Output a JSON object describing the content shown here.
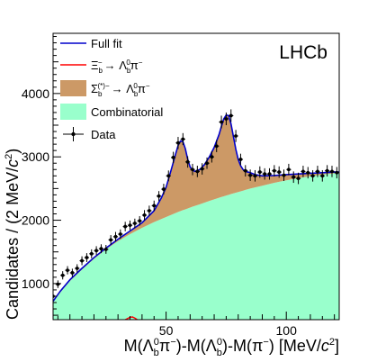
{
  "chart_data": {
    "type": "line",
    "experiment_label": "LHCb",
    "xlabel": {
      "pre": "M(Λ",
      "b": "b",
      "zero": "0",
      "mid": "π",
      "sup1": "−",
      "post1": ")-M(Λ",
      "post2": ")-M(π",
      "post3": ") [MeV/",
      "c": "c",
      "two": "2",
      "end": "]"
    },
    "ylabel": {
      "pre": "Candidates / (2 MeV/",
      "c": "c",
      "two": "2",
      "end": ")"
    },
    "xlim": [
      3,
      122
    ],
    "ylim": [
      430,
      4950
    ],
    "x_ticks": [
      50,
      100
    ],
    "y_ticks": [
      1000,
      2000,
      3000,
      4000
    ],
    "legend": {
      "placement": "top-left",
      "entries": [
        {
          "key": "full_fit",
          "label": "Full fit",
          "color": "#0000cc",
          "style": "line"
        },
        {
          "key": "xib",
          "label": "Ξb− → Λb0π−",
          "color": "#ff0000",
          "style": "line"
        },
        {
          "key": "sigmab",
          "label": "Σb(*)− → Λb0π−",
          "color": "#cc9966",
          "style": "fill"
        },
        {
          "key": "comb",
          "label": "Combinatorial",
          "color": "#99ffcc",
          "style": "fill"
        },
        {
          "key": "data",
          "label": "Data",
          "color": "#000000",
          "style": "marker"
        }
      ]
    },
    "series": [
      {
        "name": "Combinatorial",
        "color": "#99ffcc",
        "x": [
          3,
          6,
          10,
          15,
          20,
          25,
          30,
          35,
          40,
          45,
          50,
          55,
          60,
          65,
          70,
          75,
          80,
          85,
          90,
          95,
          100,
          105,
          110,
          115,
          120,
          122
        ],
        "y": [
          710,
          860,
          1040,
          1220,
          1390,
          1540,
          1670,
          1780,
          1880,
          1970,
          2050,
          2130,
          2200,
          2265,
          2330,
          2390,
          2445,
          2500,
          2545,
          2590,
          2630,
          2665,
          2695,
          2720,
          2740,
          2745
        ]
      },
      {
        "name": "Full fit",
        "color": "#0000cc",
        "x": [
          3,
          6,
          10,
          15,
          20,
          25,
          30,
          35,
          40,
          45,
          48,
          50,
          52,
          54,
          55,
          56,
          57,
          58,
          59,
          60,
          61,
          62,
          64,
          66,
          68,
          70,
          72,
          73,
          74,
          75,
          76,
          77,
          78,
          79,
          80,
          81,
          82,
          83,
          84,
          85,
          87,
          90,
          95,
          100,
          105,
          110,
          115,
          120,
          122
        ],
        "y": [
          720,
          880,
          1060,
          1240,
          1410,
          1560,
          1700,
          1830,
          1960,
          2150,
          2350,
          2520,
          2780,
          3050,
          3180,
          3250,
          3240,
          3130,
          2960,
          2840,
          2790,
          2770,
          2800,
          2880,
          3000,
          3150,
          3350,
          3480,
          3600,
          3660,
          3650,
          3520,
          3320,
          3120,
          2960,
          2860,
          2800,
          2770,
          2760,
          2750,
          2720,
          2700,
          2705,
          2720,
          2730,
          2740,
          2750,
          2760,
          2760
        ]
      },
      {
        "name": "Ξb− → Λb0π−",
        "color": "#ff0000",
        "x": [
          33,
          34,
          35,
          36,
          37,
          38
        ],
        "y": [
          0,
          25,
          55,
          60,
          35,
          0
        ]
      },
      {
        "name": "Data",
        "color": "#000000",
        "x": [
          3,
          5,
          7,
          9,
          11,
          13,
          15,
          17,
          19,
          21,
          23,
          25,
          27,
          29,
          31,
          33,
          35,
          37,
          39,
          41,
          43,
          45,
          47,
          49,
          51,
          53,
          55,
          57,
          59,
          61,
          63,
          65,
          67,
          69,
          71,
          73,
          75,
          77,
          79,
          81,
          83,
          85,
          87,
          89,
          91,
          93,
          95,
          97,
          99,
          101,
          103,
          105,
          107,
          109,
          111,
          113,
          115,
          117,
          119,
          121
        ],
        "y": [
          800,
          990,
          1130,
          1210,
          1170,
          1240,
          1360,
          1410,
          1470,
          1520,
          1550,
          1540,
          1690,
          1740,
          1780,
          1900,
          1920,
          1950,
          1990,
          2080,
          2150,
          2230,
          2380,
          2490,
          2700,
          2990,
          3220,
          3280,
          2920,
          2800,
          2770,
          2810,
          2900,
          3000,
          3170,
          3550,
          3600,
          3650,
          3330,
          2960,
          2780,
          2710,
          2700,
          2760,
          2730,
          2730,
          2780,
          2760,
          2710,
          2800,
          2680,
          2660,
          2770,
          2750,
          2700,
          2770,
          2700,
          2780,
          2770,
          2750
        ],
        "errors": [
          55,
          60,
          65,
          65,
          65,
          65,
          70,
          70,
          70,
          70,
          70,
          70,
          75,
          75,
          75,
          75,
          75,
          75,
          75,
          80,
          80,
          80,
          80,
          85,
          85,
          90,
          95,
          95,
          90,
          90,
          90,
          90,
          90,
          90,
          95,
          100,
          100,
          100,
          95,
          90,
          90,
          90,
          90,
          90,
          90,
          90,
          90,
          90,
          90,
          90,
          90,
          90,
          90,
          90,
          90,
          90,
          90,
          90,
          90,
          90
        ]
      }
    ]
  }
}
